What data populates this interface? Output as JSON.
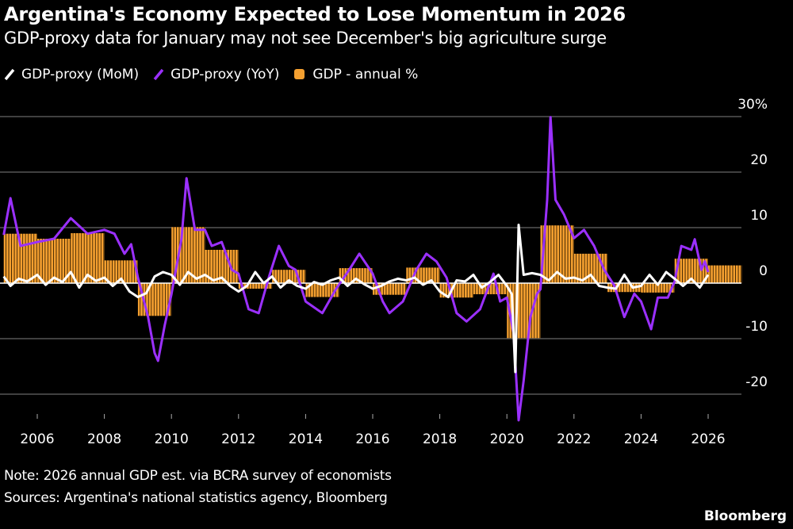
{
  "title": "Argentina's Economy Expected to Lose Momentum in 2026",
  "subtitle": "GDP-proxy data for January may not see December's big agriculture surge",
  "legend": [
    {
      "label": "GDP-proxy (MoM)",
      "color": "#FFFFFF",
      "icon": "slash-line-icon"
    },
    {
      "label": "GDP-proxy (YoY)",
      "color": "#9B30FF",
      "icon": "slash-line-icon"
    },
    {
      "label": "GDP - annual %",
      "color": "#F5A030",
      "icon": "square-icon"
    }
  ],
  "note": "Note: 2026 annual GDP est. via BCRA survey of economists",
  "sources": "Sources: Argentina's national statistics agency, Bloomberg",
  "brand": "Bloomberg",
  "chart_data": {
    "type": "bar+line",
    "ylim": [
      -25,
      30
    ],
    "yticks": [
      {
        "v": 30,
        "label": "30%"
      },
      {
        "v": 20,
        "label": "20"
      },
      {
        "v": 10,
        "label": "10"
      },
      {
        "v": 0,
        "label": "0"
      },
      {
        "v": -10,
        "label": "-10"
      },
      {
        "v": -20,
        "label": "-20"
      }
    ],
    "xlim": [
      2005,
      2027.1
    ],
    "xticks": [
      "2006",
      "2008",
      "2010",
      "2012",
      "2014",
      "2016",
      "2018",
      "2020",
      "2022",
      "2024",
      "2026"
    ],
    "grid": true,
    "legend_placement": "top-left",
    "series": [
      {
        "name": "GDP - annual %",
        "type": "bar",
        "color": "#F5A030",
        "years": [
          2005,
          2006,
          2007,
          2008,
          2009,
          2010,
          2011,
          2012,
          2013,
          2014,
          2015,
          2016,
          2017,
          2018,
          2019,
          2020,
          2021,
          2022,
          2023,
          2024,
          2025,
          2026
        ],
        "values": [
          8.9,
          8.0,
          9.0,
          4.1,
          -5.9,
          10.1,
          6.0,
          -1.0,
          2.4,
          -2.5,
          2.7,
          -2.1,
          2.8,
          -2.6,
          -2.0,
          -9.9,
          10.4,
          5.3,
          -1.6,
          -1.7,
          4.4,
          3.2
        ]
      },
      {
        "name": "GDP-proxy (YoY)",
        "type": "line",
        "color": "#9B30FF",
        "points": [
          [
            2005.0,
            8.7
          ],
          [
            2005.2,
            15.3
          ],
          [
            2005.5,
            6.7
          ],
          [
            2006.0,
            7.4
          ],
          [
            2006.5,
            8.0
          ],
          [
            2007.0,
            11.7
          ],
          [
            2007.5,
            8.9
          ],
          [
            2008.0,
            9.6
          ],
          [
            2008.3,
            8.9
          ],
          [
            2008.6,
            5.3
          ],
          [
            2008.8,
            7.0
          ],
          [
            2009.0,
            1.0
          ],
          [
            2009.3,
            -6.0
          ],
          [
            2009.5,
            -12.6
          ],
          [
            2009.6,
            -14.0
          ],
          [
            2009.8,
            -7.6
          ],
          [
            2010.0,
            -2.0
          ],
          [
            2010.3,
            8.0
          ],
          [
            2010.45,
            18.9
          ],
          [
            2010.7,
            9.6
          ],
          [
            2011.0,
            9.6
          ],
          [
            2011.2,
            6.7
          ],
          [
            2011.5,
            7.4
          ],
          [
            2011.8,
            2.4
          ],
          [
            2012.0,
            1.7
          ],
          [
            2012.3,
            -4.7
          ],
          [
            2012.6,
            -5.4
          ],
          [
            2012.9,
            1.0
          ],
          [
            2013.2,
            6.7
          ],
          [
            2013.5,
            3.1
          ],
          [
            2013.7,
            2.4
          ],
          [
            2014.0,
            -3.3
          ],
          [
            2014.5,
            -5.4
          ],
          [
            2014.9,
            -1.1
          ],
          [
            2015.3,
            2.4
          ],
          [
            2015.6,
            5.3
          ],
          [
            2016.0,
            1.7
          ],
          [
            2016.3,
            -3.3
          ],
          [
            2016.5,
            -5.4
          ],
          [
            2016.9,
            -3.3
          ],
          [
            2017.3,
            2.4
          ],
          [
            2017.6,
            5.3
          ],
          [
            2017.9,
            3.9
          ],
          [
            2018.2,
            1.0
          ],
          [
            2018.5,
            -5.4
          ],
          [
            2018.8,
            -6.9
          ],
          [
            2019.2,
            -4.7
          ],
          [
            2019.6,
            1.7
          ],
          [
            2019.8,
            -3.3
          ],
          [
            2020.0,
            -2.6
          ],
          [
            2020.2,
            -9.0
          ],
          [
            2020.35,
            -24.7
          ],
          [
            2020.5,
            -17.6
          ],
          [
            2020.7,
            -6.1
          ],
          [
            2020.9,
            -1.9
          ],
          [
            2021.0,
            -1.1
          ],
          [
            2021.2,
            15.0
          ],
          [
            2021.3,
            29.9
          ],
          [
            2021.45,
            15.0
          ],
          [
            2021.7,
            12.4
          ],
          [
            2022.0,
            8.1
          ],
          [
            2022.3,
            9.6
          ],
          [
            2022.6,
            6.7
          ],
          [
            2022.9,
            2.4
          ],
          [
            2023.2,
            -0.4
          ],
          [
            2023.5,
            -6.1
          ],
          [
            2023.8,
            -1.9
          ],
          [
            2024.0,
            -3.3
          ],
          [
            2024.3,
            -8.3
          ],
          [
            2024.5,
            -2.6
          ],
          [
            2024.8,
            -2.6
          ],
          [
            2025.0,
            0.3
          ],
          [
            2025.2,
            6.7
          ],
          [
            2025.5,
            6.0
          ],
          [
            2025.6,
            7.9
          ],
          [
            2025.8,
            2.4
          ],
          [
            2025.9,
            3.9
          ],
          [
            2026.0,
            2.0
          ]
        ]
      },
      {
        "name": "GDP-proxy (MoM)",
        "type": "line",
        "color": "#FFFFFF",
        "points": [
          [
            2005.0,
            1.2
          ],
          [
            2005.2,
            -0.5
          ],
          [
            2005.45,
            0.8
          ],
          [
            2005.7,
            0.3
          ],
          [
            2006.0,
            1.5
          ],
          [
            2006.25,
            -0.3
          ],
          [
            2006.5,
            1.0
          ],
          [
            2006.75,
            0.2
          ],
          [
            2007.0,
            2.0
          ],
          [
            2007.25,
            -0.8
          ],
          [
            2007.5,
            1.5
          ],
          [
            2007.75,
            0.4
          ],
          [
            2008.0,
            1.0
          ],
          [
            2008.25,
            -0.5
          ],
          [
            2008.5,
            0.8
          ],
          [
            2008.75,
            -1.5
          ],
          [
            2009.0,
            -2.5
          ],
          [
            2009.25,
            -1.8
          ],
          [
            2009.5,
            1.2
          ],
          [
            2009.75,
            2.0
          ],
          [
            2010.0,
            1.5
          ],
          [
            2010.25,
            -0.3
          ],
          [
            2010.5,
            2.0
          ],
          [
            2010.75,
            0.8
          ],
          [
            2011.0,
            1.5
          ],
          [
            2011.25,
            0.5
          ],
          [
            2011.5,
            1.0
          ],
          [
            2011.75,
            -0.5
          ],
          [
            2012.0,
            -1.5
          ],
          [
            2012.25,
            -0.5
          ],
          [
            2012.5,
            2.0
          ],
          [
            2012.75,
            0.0
          ],
          [
            2013.0,
            1.2
          ],
          [
            2013.25,
            -0.8
          ],
          [
            2013.5,
            0.5
          ],
          [
            2013.75,
            -0.5
          ],
          [
            2014.0,
            -1.0
          ],
          [
            2014.25,
            0.2
          ],
          [
            2014.5,
            -0.3
          ],
          [
            2014.75,
            0.5
          ],
          [
            2015.0,
            1.0
          ],
          [
            2015.25,
            -0.5
          ],
          [
            2015.5,
            0.8
          ],
          [
            2015.75,
            -0.2
          ],
          [
            2016.0,
            -1.0
          ],
          [
            2016.25,
            -0.5
          ],
          [
            2016.5,
            0.3
          ],
          [
            2016.75,
            0.8
          ],
          [
            2017.0,
            0.5
          ],
          [
            2017.25,
            1.0
          ],
          [
            2017.5,
            -0.3
          ],
          [
            2017.75,
            0.5
          ],
          [
            2018.0,
            -1.5
          ],
          [
            2018.25,
            -2.5
          ],
          [
            2018.5,
            0.5
          ],
          [
            2018.75,
            0.3
          ],
          [
            2019.0,
            1.5
          ],
          [
            2019.25,
            -0.8
          ],
          [
            2019.5,
            0.2
          ],
          [
            2019.75,
            1.5
          ],
          [
            2020.0,
            -0.5
          ],
          [
            2020.15,
            -2.0
          ],
          [
            2020.25,
            -16.0
          ],
          [
            2020.35,
            10.5
          ],
          [
            2020.5,
            1.5
          ],
          [
            2020.75,
            1.8
          ],
          [
            2021.0,
            1.5
          ],
          [
            2021.25,
            0.5
          ],
          [
            2021.5,
            2.0
          ],
          [
            2021.75,
            0.8
          ],
          [
            2022.0,
            1.0
          ],
          [
            2022.25,
            0.5
          ],
          [
            2022.5,
            1.5
          ],
          [
            2022.75,
            -0.5
          ],
          [
            2023.0,
            -0.8
          ],
          [
            2023.25,
            -1.0
          ],
          [
            2023.5,
            1.5
          ],
          [
            2023.75,
            -0.8
          ],
          [
            2024.0,
            -0.5
          ],
          [
            2024.25,
            1.5
          ],
          [
            2024.5,
            -0.3
          ],
          [
            2024.75,
            2.0
          ],
          [
            2025.0,
            0.8
          ],
          [
            2025.25,
            -0.5
          ],
          [
            2025.5,
            0.8
          ],
          [
            2025.75,
            -0.8
          ],
          [
            2026.0,
            1.5
          ]
        ]
      }
    ]
  }
}
